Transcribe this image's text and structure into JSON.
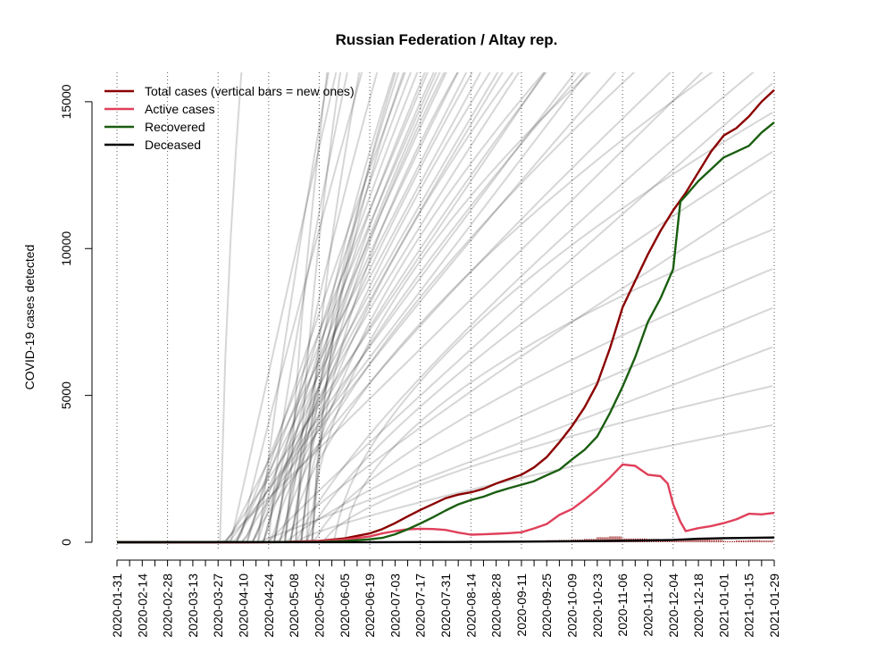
{
  "chart_data": {
    "type": "line",
    "title": "Russian Federation / Altay rep.",
    "ylabel": "COVID-19 cases detected",
    "xlabel": "",
    "ylim": [
      0,
      16000
    ],
    "x_start": "2020-01-31",
    "x_end": "2021-01-29",
    "y_ticks": [
      {
        "value": 0,
        "label": "0"
      },
      {
        "value": 5000,
        "label": "5000"
      },
      {
        "value": 10000,
        "label": "10000"
      },
      {
        "value": 15000,
        "label": "15000"
      }
    ],
    "x_tick_labels": [
      "2020-01-31",
      "2020-02-14",
      "2020-02-28",
      "2020-03-13",
      "2020-03-27",
      "2020-04-10",
      "2020-04-24",
      "2020-05-08",
      "2020-05-22",
      "2020-06-05",
      "2020-06-19",
      "2020-07-03",
      "2020-07-17",
      "2020-07-31",
      "2020-08-14",
      "2020-08-28",
      "2020-09-11",
      "2020-09-25",
      "2020-10-09",
      "2020-10-23",
      "2020-11-06",
      "2020-11-20",
      "2020-12-04",
      "2020-12-18",
      "2021-01-01",
      "2021-01-15",
      "2021-01-29"
    ],
    "vertical_gridlines_every": "4 weeks",
    "legend_position": "top-left",
    "series": [
      {
        "name": "Total cases (vertical bars = new ones)",
        "color": "#8b0000",
        "points": [
          [
            "2020-01-31",
            0
          ],
          [
            "2020-04-10",
            0
          ],
          [
            "2020-05-01",
            5
          ],
          [
            "2020-05-22",
            50
          ],
          [
            "2020-06-05",
            130
          ],
          [
            "2020-06-19",
            300
          ],
          [
            "2020-06-26",
            450
          ],
          [
            "2020-07-03",
            650
          ],
          [
            "2020-07-10",
            880
          ],
          [
            "2020-07-17",
            1100
          ],
          [
            "2020-07-24",
            1300
          ],
          [
            "2020-07-31",
            1500
          ],
          [
            "2020-08-07",
            1620
          ],
          [
            "2020-08-14",
            1700
          ],
          [
            "2020-08-21",
            1820
          ],
          [
            "2020-08-28",
            2000
          ],
          [
            "2020-09-04",
            2150
          ],
          [
            "2020-09-11",
            2300
          ],
          [
            "2020-09-18",
            2550
          ],
          [
            "2020-09-25",
            2900
          ],
          [
            "2020-10-02",
            3400
          ],
          [
            "2020-10-09",
            3950
          ],
          [
            "2020-10-16",
            4600
          ],
          [
            "2020-10-23",
            5400
          ],
          [
            "2020-10-30",
            6600
          ],
          [
            "2020-11-06",
            8000
          ],
          [
            "2020-11-13",
            8900
          ],
          [
            "2020-11-20",
            9800
          ],
          [
            "2020-11-27",
            10600
          ],
          [
            "2020-12-04",
            11300
          ],
          [
            "2020-12-11",
            11900
          ],
          [
            "2020-12-18",
            12600
          ],
          [
            "2020-12-25",
            13300
          ],
          [
            "2021-01-01",
            13850
          ],
          [
            "2021-01-08",
            14100
          ],
          [
            "2021-01-15",
            14500
          ],
          [
            "2021-01-22",
            15000
          ],
          [
            "2021-01-29",
            15400
          ]
        ]
      },
      {
        "name": "Active cases",
        "color": "#e0405a",
        "points": [
          [
            "2020-01-31",
            0
          ],
          [
            "2020-04-10",
            0
          ],
          [
            "2020-05-01",
            5
          ],
          [
            "2020-05-22",
            40
          ],
          [
            "2020-06-05",
            90
          ],
          [
            "2020-06-19",
            200
          ],
          [
            "2020-06-26",
            300
          ],
          [
            "2020-07-03",
            380
          ],
          [
            "2020-07-10",
            440
          ],
          [
            "2020-07-17",
            460
          ],
          [
            "2020-07-24",
            450
          ],
          [
            "2020-07-31",
            420
          ],
          [
            "2020-08-07",
            330
          ],
          [
            "2020-08-14",
            260
          ],
          [
            "2020-08-21",
            270
          ],
          [
            "2020-08-28",
            290
          ],
          [
            "2020-09-04",
            310
          ],
          [
            "2020-09-11",
            340
          ],
          [
            "2020-09-18",
            470
          ],
          [
            "2020-09-25",
            620
          ],
          [
            "2020-10-02",
            930
          ],
          [
            "2020-10-09",
            1130
          ],
          [
            "2020-10-16",
            1450
          ],
          [
            "2020-10-23",
            1800
          ],
          [
            "2020-10-30",
            2200
          ],
          [
            "2020-11-06",
            2650
          ],
          [
            "2020-11-13",
            2600
          ],
          [
            "2020-11-20",
            2300
          ],
          [
            "2020-11-27",
            2250
          ],
          [
            "2020-12-01",
            2000
          ],
          [
            "2020-12-04",
            1300
          ],
          [
            "2020-12-08",
            700
          ],
          [
            "2020-12-11",
            380
          ],
          [
            "2020-12-18",
            480
          ],
          [
            "2020-12-25",
            550
          ],
          [
            "2021-01-01",
            650
          ],
          [
            "2021-01-08",
            780
          ],
          [
            "2021-01-15",
            970
          ],
          [
            "2021-01-22",
            950
          ],
          [
            "2021-01-29",
            1000
          ]
        ]
      },
      {
        "name": "Recovered",
        "color": "#1a5e10",
        "points": [
          [
            "2020-01-31",
            0
          ],
          [
            "2020-05-22",
            10
          ],
          [
            "2020-06-05",
            40
          ],
          [
            "2020-06-19",
            100
          ],
          [
            "2020-06-26",
            150
          ],
          [
            "2020-07-03",
            270
          ],
          [
            "2020-07-10",
            440
          ],
          [
            "2020-07-17",
            640
          ],
          [
            "2020-07-24",
            850
          ],
          [
            "2020-07-31",
            1080
          ],
          [
            "2020-08-07",
            1290
          ],
          [
            "2020-08-14",
            1440
          ],
          [
            "2020-08-21",
            1550
          ],
          [
            "2020-08-28",
            1710
          ],
          [
            "2020-09-04",
            1840
          ],
          [
            "2020-09-11",
            1960
          ],
          [
            "2020-09-18",
            2080
          ],
          [
            "2020-09-25",
            2280
          ],
          [
            "2020-10-02",
            2470
          ],
          [
            "2020-10-09",
            2820
          ],
          [
            "2020-10-16",
            3150
          ],
          [
            "2020-10-23",
            3600
          ],
          [
            "2020-10-30",
            4400
          ],
          [
            "2020-11-06",
            5300
          ],
          [
            "2020-11-13",
            6300
          ],
          [
            "2020-11-20",
            7500
          ],
          [
            "2020-11-27",
            8300
          ],
          [
            "2020-12-04",
            9300
          ],
          [
            "2020-12-08",
            11600
          ],
          [
            "2020-12-11",
            11800
          ],
          [
            "2020-12-18",
            12300
          ],
          [
            "2020-12-25",
            12700
          ],
          [
            "2021-01-01",
            13100
          ],
          [
            "2021-01-08",
            13300
          ],
          [
            "2021-01-15",
            13500
          ],
          [
            "2021-01-22",
            13950
          ],
          [
            "2021-01-29",
            14300
          ]
        ]
      },
      {
        "name": "Deceased",
        "color": "#000000",
        "points": [
          [
            "2020-01-31",
            0
          ],
          [
            "2020-06-19",
            2
          ],
          [
            "2020-07-31",
            10
          ],
          [
            "2020-09-11",
            20
          ],
          [
            "2020-10-23",
            40
          ],
          [
            "2020-11-20",
            60
          ],
          [
            "2020-12-04",
            80
          ],
          [
            "2020-12-18",
            120
          ],
          [
            "2021-01-01",
            140
          ],
          [
            "2021-01-15",
            150
          ],
          [
            "2021-01-29",
            160
          ]
        ]
      }
    ],
    "background_curves": {
      "color": "#000000",
      "description_count": 56
    }
  }
}
